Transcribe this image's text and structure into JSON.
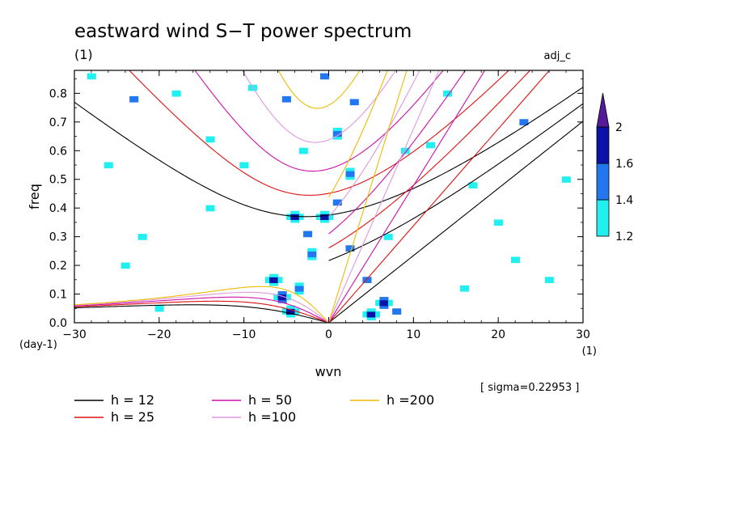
{
  "chart_data": {
    "type": "heatmap",
    "title": "eastward wind S−T power spectrum",
    "subtitle_left": "(1)",
    "subtitle_right": "adj_c",
    "xlabel": "wvn",
    "ylabel": "freq",
    "x_unit": "(1)",
    "y_unit": "(day-1)",
    "sigma_note": "[ sigma=0.22953 ]",
    "xlim": [
      -30,
      30
    ],
    "ylim": [
      0,
      0.88
    ],
    "x_ticks": [
      {
        "v": -30,
        "label": "−30"
      },
      {
        "v": -20,
        "label": "−20"
      },
      {
        "v": -10,
        "label": "−10"
      },
      {
        "v": 0,
        "label": "0"
      },
      {
        "v": 10,
        "label": "10"
      },
      {
        "v": 20,
        "label": "20"
      },
      {
        "v": 30,
        "label": "30"
      }
    ],
    "y_ticks": [
      {
        "v": 0.0,
        "label": "0.0"
      },
      {
        "v": 0.1,
        "label": "0.1"
      },
      {
        "v": 0.2,
        "label": "0.2"
      },
      {
        "v": 0.3,
        "label": "0.3"
      },
      {
        "v": 0.4,
        "label": "0.4"
      },
      {
        "v": 0.5,
        "label": "0.5"
      },
      {
        "v": 0.6,
        "label": "0.6"
      },
      {
        "v": 0.7,
        "label": "0.7"
      },
      {
        "v": 0.8,
        "label": "0.8"
      }
    ],
    "grid": false,
    "colorbar": {
      "levels": [
        1.2,
        1.4,
        1.6,
        2.0
      ],
      "labels": [
        "1.2",
        "1.4",
        "1.6",
        "2"
      ],
      "colors": [
        "#22f0f0",
        "#2277ee",
        "#0a12a8",
        "#551a9a"
      ]
    },
    "dispersion_curves": [
      {
        "label": "h = 12",
        "h": 12,
        "color": "#000000"
      },
      {
        "label": "h = 25",
        "h": 25,
        "color": "#dd1111"
      },
      {
        "label": "h = 50",
        "h": 50,
        "color": "#cc11aa"
      },
      {
        "label": "h =100",
        "h": 100,
        "color": "#dd99dd"
      },
      {
        "label": "h =200",
        "h": 200,
        "color": "#eebb00"
      }
    ],
    "spectral_peaks": [
      {
        "wvn": -5.5,
        "freq": 0.09,
        "power": 2.0
      },
      {
        "wvn": -4.5,
        "freq": 0.04,
        "power": 1.9
      },
      {
        "wvn": -6.5,
        "freq": 0.15,
        "power": 1.8
      },
      {
        "wvn": -3.5,
        "freq": 0.12,
        "power": 1.7
      },
      {
        "wvn": -2.0,
        "freq": 0.24,
        "power": 1.7
      },
      {
        "wvn": -4.0,
        "freq": 0.37,
        "power": 1.9
      },
      {
        "wvn": -0.5,
        "freq": 0.37,
        "power": 1.9
      },
      {
        "wvn": -2.5,
        "freq": 0.31,
        "power": 1.5
      },
      {
        "wvn": 6.5,
        "freq": 0.07,
        "power": 2.0
      },
      {
        "wvn": 5.0,
        "freq": 0.03,
        "power": 1.8
      },
      {
        "wvn": 8.0,
        "freq": 0.04,
        "power": 1.6
      },
      {
        "wvn": 4.5,
        "freq": 0.15,
        "power": 1.5
      },
      {
        "wvn": 2.5,
        "freq": 0.26,
        "power": 1.6
      },
      {
        "wvn": 1.0,
        "freq": 0.42,
        "power": 1.6
      },
      {
        "wvn": 2.5,
        "freq": 0.52,
        "power": 1.7
      },
      {
        "wvn": 1.0,
        "freq": 0.66,
        "power": 1.7
      },
      {
        "wvn": 3.0,
        "freq": 0.77,
        "power": 1.6
      },
      {
        "wvn": -0.5,
        "freq": 0.86,
        "power": 1.5
      },
      {
        "wvn": -10.0,
        "freq": 0.55,
        "power": 1.4
      },
      {
        "wvn": -14.0,
        "freq": 0.64,
        "power": 1.4
      },
      {
        "wvn": -18.0,
        "freq": 0.8,
        "power": 1.4
      },
      {
        "wvn": -5.0,
        "freq": 0.78,
        "power": 1.5
      },
      {
        "wvn": -9.0,
        "freq": 0.82,
        "power": 1.4
      },
      {
        "wvn": -23.0,
        "freq": 0.78,
        "power": 1.5
      },
      {
        "wvn": -26.0,
        "freq": 0.55,
        "power": 1.4
      },
      {
        "wvn": -14.0,
        "freq": 0.4,
        "power": 1.4
      },
      {
        "wvn": -22.0,
        "freq": 0.3,
        "power": 1.3
      },
      {
        "wvn": -3.0,
        "freq": 0.6,
        "power": 1.3
      },
      {
        "wvn": 12.0,
        "freq": 0.62,
        "power": 1.4
      },
      {
        "wvn": 17.0,
        "freq": 0.48,
        "power": 1.4
      },
      {
        "wvn": 20.0,
        "freq": 0.35,
        "power": 1.4
      },
      {
        "wvn": 23.0,
        "freq": 0.7,
        "power": 1.5
      },
      {
        "wvn": 26.0,
        "freq": 0.15,
        "power": 1.4
      },
      {
        "wvn": 16.0,
        "freq": 0.12,
        "power": 1.3
      },
      {
        "wvn": 7.0,
        "freq": 0.3,
        "power": 1.3
      },
      {
        "wvn": 9.0,
        "freq": 0.6,
        "power": 1.3
      },
      {
        "wvn": 28.0,
        "freq": 0.5,
        "power": 1.3
      },
      {
        "wvn": 14.0,
        "freq": 0.8,
        "power": 1.3
      },
      {
        "wvn": -28.0,
        "freq": 0.86,
        "power": 1.4
      },
      {
        "wvn": -20.0,
        "freq": 0.05,
        "power": 1.3
      },
      {
        "wvn": -24.0,
        "freq": 0.2,
        "power": 1.3
      },
      {
        "wvn": 22.0,
        "freq": 0.22,
        "power": 1.3
      }
    ]
  }
}
